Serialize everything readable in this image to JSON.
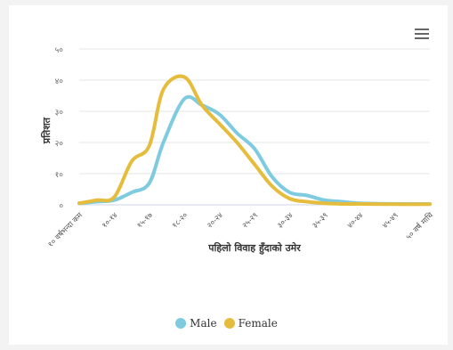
{
  "chart_data": {
    "type": "line",
    "title": "",
    "xlabel": "पहिलो विवाह हुँदाको उमेर",
    "ylabel": "प्रतिशत",
    "ylim": [
      0,
      50
    ],
    "yticks": [
      "०",
      "१०",
      "२०",
      "३०",
      "४०",
      "५०"
    ],
    "ytick_values": [
      0,
      10,
      20,
      30,
      40,
      50
    ],
    "categories": [
      "१० वर्षभन्दा कम",
      "१०-१४",
      "१५-१७",
      "१८-२०",
      "२०-२४",
      "२५-२९",
      "३०-३४",
      "३५-३९",
      "४०-४४",
      "४५-४९",
      "५० वर्ष माथि"
    ],
    "grid": true,
    "legend_position": "bottom",
    "series": [
      {
        "name": "Male",
        "color": "#7ecbe0",
        "x": [
          0,
          0.5,
          1,
          1.5,
          2,
          2.4,
          3,
          3.5,
          4,
          4.5,
          5,
          5.5,
          6,
          6.5,
          7,
          7.5,
          8,
          9,
          10
        ],
        "values": [
          0.5,
          1,
          1.5,
          4,
          7,
          20,
          34,
          32,
          29,
          23,
          18,
          9,
          4,
          3,
          1.5,
          1,
          0.5,
          0.3,
          0.3
        ]
      },
      {
        "name": "Female",
        "color": "#e5bc3c",
        "x": [
          0,
          0.5,
          1,
          1.5,
          2,
          2.4,
          3,
          3.5,
          4,
          4.5,
          5,
          5.5,
          6,
          6.5,
          7,
          7.5,
          8,
          9,
          10
        ],
        "values": [
          0.5,
          1.5,
          2.5,
          14,
          19,
          37,
          41,
          32,
          26,
          20,
          13,
          6,
          2,
          1,
          0.5,
          0.3,
          0.3,
          0.2,
          0.2
        ]
      }
    ]
  }
}
